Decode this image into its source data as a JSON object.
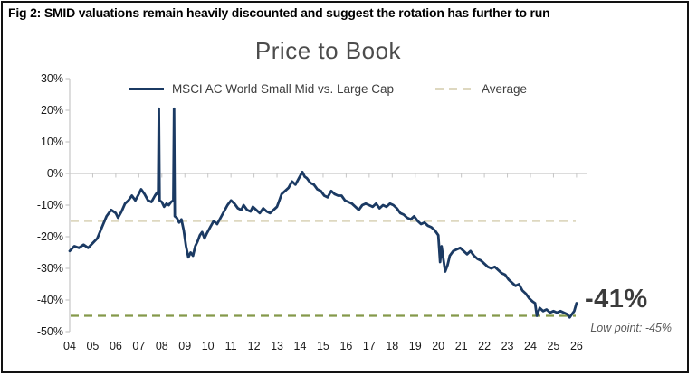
{
  "figure_caption": "Fig 2: SMID valuations remain heavily discounted and suggest the rotation has further to run",
  "chart": {
    "title": "Price to Book",
    "legend": {
      "series_label": "MSCI AC World Small Mid vs. Large Cap",
      "average_label": "Average"
    },
    "end_annotation": "-41%",
    "low_point_annotation": "Low point: -45%"
  },
  "colors": {
    "series": "#1b3a63",
    "average_line": "#ded8c0",
    "low_point_line": "#85994a",
    "axis": "#c6c6c6",
    "title_text": "#4c4c4c",
    "annotation_text": "#3b3b3b",
    "low_point_text": "#595959"
  },
  "chart_data": {
    "type": "line",
    "title": "Price to Book",
    "xlabel": "",
    "ylabel": "",
    "legend_position": "top",
    "grid": "zero-axis-line-only",
    "xlim": [
      2004,
      2026.5
    ],
    "ylim": [
      -50,
      30
    ],
    "x_tick_labels": [
      "04",
      "05",
      "06",
      "07",
      "08",
      "09",
      "10",
      "11",
      "12",
      "13",
      "14",
      "15",
      "16",
      "17",
      "18",
      "19",
      "20",
      "21",
      "22",
      "23",
      "24",
      "25",
      "26"
    ],
    "x_tick_years": [
      2004,
      2005,
      2006,
      2007,
      2008,
      2009,
      2010,
      2011,
      2012,
      2013,
      2014,
      2015,
      2016,
      2017,
      2018,
      2019,
      2020,
      2021,
      2022,
      2023,
      2024,
      2025,
      2026
    ],
    "y_tick_labels": [
      "30%",
      "20%",
      "10%",
      "0%",
      "-10%",
      "-20%",
      "-30%",
      "-40%",
      "-50%"
    ],
    "y_tick_values": [
      30,
      20,
      10,
      0,
      -10,
      -20,
      -30,
      -40,
      -50
    ],
    "reference_lines": [
      {
        "name": "average",
        "value": -15,
        "style": "dashed",
        "color": "#ded8c0"
      },
      {
        "name": "low-point",
        "value": -45,
        "style": "dashed",
        "color": "#85994a"
      }
    ],
    "annotations": [
      {
        "text": "-41%",
        "x": 2026.4,
        "y": -41,
        "style": "bold"
      },
      {
        "text": "Low point: -45%",
        "x": 2026.4,
        "y": -48.5,
        "style": "italic"
      }
    ],
    "series": [
      {
        "name": "MSCI AC World Small Mid vs. Large Cap",
        "type": "line",
        "color": "#1b3a63",
        "points": [
          [
            2004.0,
            -24.5
          ],
          [
            2004.2,
            -23
          ],
          [
            2004.4,
            -23.5
          ],
          [
            2004.6,
            -22.5
          ],
          [
            2004.8,
            -23.5
          ],
          [
            2005.0,
            -22
          ],
          [
            2005.2,
            -20.5
          ],
          [
            2005.4,
            -17
          ],
          [
            2005.6,
            -13.5
          ],
          [
            2005.8,
            -11.5
          ],
          [
            2006.0,
            -12.5
          ],
          [
            2006.1,
            -14
          ],
          [
            2006.25,
            -12
          ],
          [
            2006.4,
            -9.5
          ],
          [
            2006.55,
            -8.5
          ],
          [
            2006.7,
            -7
          ],
          [
            2006.85,
            -8.5
          ],
          [
            2007.0,
            -6.5
          ],
          [
            2007.1,
            -5
          ],
          [
            2007.25,
            -6.5
          ],
          [
            2007.4,
            -8.5
          ],
          [
            2007.55,
            -9
          ],
          [
            2007.7,
            -7
          ],
          [
            2007.8,
            -6
          ],
          [
            2007.84,
            -6.5
          ],
          [
            2007.87,
            20.5
          ],
          [
            2007.9,
            -8.5
          ],
          [
            2008.0,
            -9
          ],
          [
            2008.1,
            -10.5
          ],
          [
            2008.2,
            -9.5
          ],
          [
            2008.3,
            -10
          ],
          [
            2008.4,
            -9
          ],
          [
            2008.5,
            -8.5
          ],
          [
            2008.53,
            20.5
          ],
          [
            2008.56,
            -13.5
          ],
          [
            2008.65,
            -14
          ],
          [
            2008.75,
            -15.5
          ],
          [
            2008.85,
            -14.5
          ],
          [
            2008.95,
            -18
          ],
          [
            2009.05,
            -23
          ],
          [
            2009.15,
            -26.5
          ],
          [
            2009.25,
            -25
          ],
          [
            2009.35,
            -26
          ],
          [
            2009.45,
            -23
          ],
          [
            2009.55,
            -21.5
          ],
          [
            2009.65,
            -19.5
          ],
          [
            2009.75,
            -18.5
          ],
          [
            2009.85,
            -20.5
          ],
          [
            2009.95,
            -19
          ],
          [
            2010.1,
            -17
          ],
          [
            2010.25,
            -15
          ],
          [
            2010.4,
            -16
          ],
          [
            2010.55,
            -14
          ],
          [
            2010.7,
            -12
          ],
          [
            2010.85,
            -10
          ],
          [
            2011.0,
            -8.5
          ],
          [
            2011.15,
            -9.5
          ],
          [
            2011.3,
            -11
          ],
          [
            2011.45,
            -11.5
          ],
          [
            2011.55,
            -10
          ],
          [
            2011.7,
            -11.5
          ],
          [
            2011.85,
            -12
          ],
          [
            2011.95,
            -10.5
          ],
          [
            2012.1,
            -11.5
          ],
          [
            2012.25,
            -12.5
          ],
          [
            2012.4,
            -11
          ],
          [
            2012.55,
            -12
          ],
          [
            2012.7,
            -12.5
          ],
          [
            2012.85,
            -11.5
          ],
          [
            2013.0,
            -10.5
          ],
          [
            2013.1,
            -8.5
          ],
          [
            2013.2,
            -6.5
          ],
          [
            2013.35,
            -5.5
          ],
          [
            2013.5,
            -4.5
          ],
          [
            2013.65,
            -2.5
          ],
          [
            2013.8,
            -3.5
          ],
          [
            2013.95,
            -1.5
          ],
          [
            2014.1,
            0.5
          ],
          [
            2014.2,
            -1
          ],
          [
            2014.3,
            -1.5
          ],
          [
            2014.45,
            -3
          ],
          [
            2014.6,
            -3.5
          ],
          [
            2014.75,
            -5
          ],
          [
            2014.9,
            -5.5
          ],
          [
            2015.05,
            -7
          ],
          [
            2015.2,
            -7.5
          ],
          [
            2015.35,
            -5.5
          ],
          [
            2015.5,
            -6.5
          ],
          [
            2015.65,
            -7
          ],
          [
            2015.8,
            -7
          ],
          [
            2015.95,
            -8.5
          ],
          [
            2016.1,
            -9
          ],
          [
            2016.25,
            -9.5
          ],
          [
            2016.4,
            -10.5
          ],
          [
            2016.55,
            -11.5
          ],
          [
            2016.7,
            -10
          ],
          [
            2016.85,
            -9.5
          ],
          [
            2017.0,
            -10
          ],
          [
            2017.15,
            -10.5
          ],
          [
            2017.3,
            -9.5
          ],
          [
            2017.45,
            -11
          ],
          [
            2017.6,
            -10
          ],
          [
            2017.75,
            -10.5
          ],
          [
            2017.9,
            -9.5
          ],
          [
            2018.05,
            -10
          ],
          [
            2018.2,
            -11
          ],
          [
            2018.35,
            -12.5
          ],
          [
            2018.5,
            -13
          ],
          [
            2018.65,
            -14
          ],
          [
            2018.8,
            -14.5
          ],
          [
            2018.95,
            -13.5
          ],
          [
            2019.1,
            -15
          ],
          [
            2019.25,
            -16
          ],
          [
            2019.4,
            -15.5
          ],
          [
            2019.55,
            -16.5
          ],
          [
            2019.7,
            -17
          ],
          [
            2019.85,
            -18
          ],
          [
            2020.0,
            -19.5
          ],
          [
            2020.08,
            -28
          ],
          [
            2020.14,
            -23
          ],
          [
            2020.2,
            -26
          ],
          [
            2020.3,
            -31
          ],
          [
            2020.4,
            -29
          ],
          [
            2020.5,
            -26
          ],
          [
            2020.65,
            -24.5
          ],
          [
            2020.8,
            -24
          ],
          [
            2020.95,
            -23.5
          ],
          [
            2021.1,
            -24.5
          ],
          [
            2021.25,
            -25.5
          ],
          [
            2021.4,
            -24.5
          ],
          [
            2021.55,
            -26
          ],
          [
            2021.7,
            -27
          ],
          [
            2021.85,
            -27.5
          ],
          [
            2022.0,
            -28.5
          ],
          [
            2022.15,
            -29.5
          ],
          [
            2022.3,
            -30
          ],
          [
            2022.45,
            -29.5
          ],
          [
            2022.6,
            -30.5
          ],
          [
            2022.75,
            -31.5
          ],
          [
            2022.9,
            -32
          ],
          [
            2023.05,
            -33.5
          ],
          [
            2023.2,
            -34.5
          ],
          [
            2023.35,
            -35.5
          ],
          [
            2023.5,
            -35
          ],
          [
            2023.65,
            -37
          ],
          [
            2023.8,
            -38
          ],
          [
            2023.95,
            -39.5
          ],
          [
            2024.1,
            -40.5
          ],
          [
            2024.2,
            -41
          ],
          [
            2024.28,
            -45
          ],
          [
            2024.4,
            -42.5
          ],
          [
            2024.55,
            -43.5
          ],
          [
            2024.7,
            -43
          ],
          [
            2024.85,
            -44
          ],
          [
            2025.0,
            -43.5
          ],
          [
            2025.15,
            -44
          ],
          [
            2025.3,
            -43.5
          ],
          [
            2025.45,
            -44
          ],
          [
            2025.6,
            -44.5
          ],
          [
            2025.7,
            -45.5
          ],
          [
            2025.8,
            -44.5
          ],
          [
            2025.9,
            -43.5
          ],
          [
            2026.0,
            -41
          ]
        ]
      },
      {
        "name": "Average",
        "type": "horizontal-dashed",
        "color": "#ded8c0",
        "value": -15
      }
    ]
  }
}
